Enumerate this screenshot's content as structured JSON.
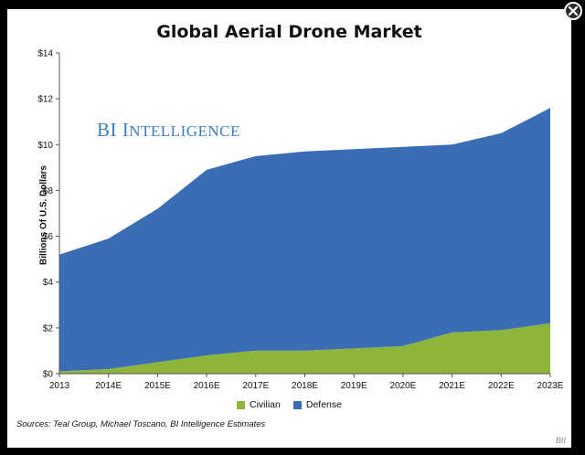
{
  "window": {
    "close_icon": "close-icon"
  },
  "chart_data": {
    "type": "area",
    "stacked": true,
    "title": "Global Aerial Drone Market",
    "watermark": {
      "first": "BI",
      "second_cap": "I",
      "second_rest": "NTELLIGENCE"
    },
    "ylabel": "Billions Of U.S. Dollars",
    "xlabel": "",
    "categories": [
      "2013",
      "2014E",
      "2015E",
      "2016E",
      "2017E",
      "2018E",
      "2019E",
      "2020E",
      "2021E",
      "2022E",
      "2023E"
    ],
    "ylim": [
      0,
      14
    ],
    "yticks": [
      0,
      2,
      4,
      6,
      8,
      10,
      12,
      14
    ],
    "ytick_labels": [
      "$0",
      "$2",
      "$4",
      "$6",
      "$8",
      "$10",
      "$12",
      "$14"
    ],
    "series": [
      {
        "name": "Civilian",
        "color": "#8db53c",
        "values": [
          0.1,
          0.2,
          0.5,
          0.8,
          1.0,
          1.0,
          1.1,
          1.2,
          1.8,
          1.9,
          2.2
        ]
      },
      {
        "name": "Defense",
        "color": "#3a6db3",
        "values": [
          5.1,
          5.7,
          6.7,
          8.1,
          8.5,
          8.7,
          8.7,
          8.7,
          8.2,
          8.6,
          9.4
        ]
      }
    ],
    "grid": false,
    "legend_position": "bottom",
    "source": "Sources: Teal Group, Michael Toscano, BI Intelligence Estimates",
    "brand": "BII"
  }
}
